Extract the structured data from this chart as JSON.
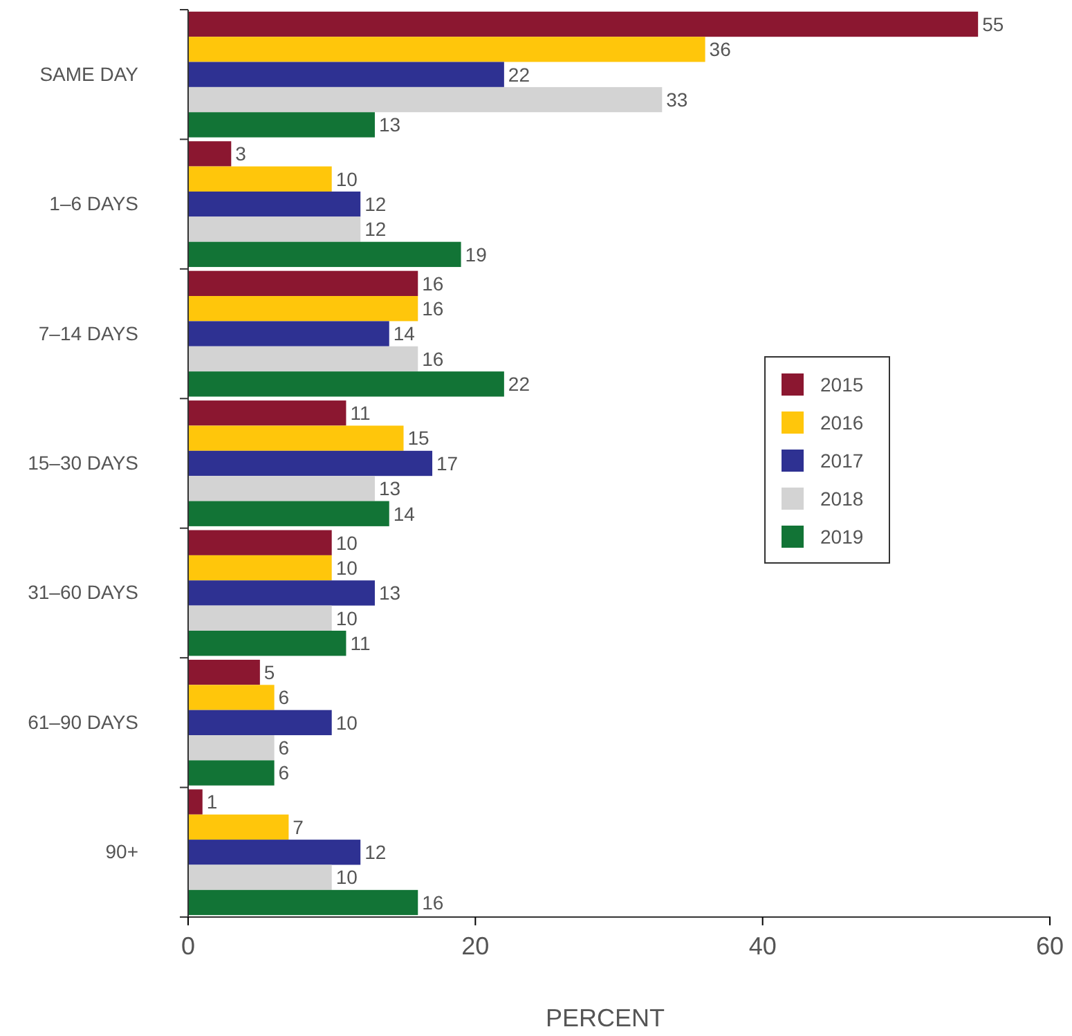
{
  "chart_data": {
    "type": "bar",
    "orientation": "horizontal",
    "xlabel": "PERCENT",
    "categories": [
      "SAME DAY",
      "1–6 DAYS",
      "7–14 DAYS",
      "15–30 DAYS",
      "31–60 DAYS",
      "61–90 DAYS",
      "90+"
    ],
    "series": [
      {
        "name": "2015",
        "color": "#8b1730",
        "values": [
          55,
          3,
          16,
          11,
          10,
          5,
          1
        ]
      },
      {
        "name": "2016",
        "color": "#ffc60b",
        "values": [
          36,
          10,
          16,
          15,
          10,
          6,
          7
        ]
      },
      {
        "name": "2017",
        "color": "#2e3192",
        "values": [
          22,
          12,
          14,
          17,
          13,
          10,
          12
        ]
      },
      {
        "name": "2018",
        "color": "#d3d3d3",
        "values": [
          33,
          12,
          16,
          13,
          10,
          6,
          10
        ]
      },
      {
        "name": "2019",
        "color": "#127436",
        "values": [
          13,
          19,
          22,
          14,
          11,
          6,
          16
        ]
      }
    ],
    "xlim": [
      0,
      60
    ],
    "xticks": [
      0,
      20,
      40,
      60
    ],
    "data_labels": true,
    "legend": "right",
    "grid": false
  }
}
